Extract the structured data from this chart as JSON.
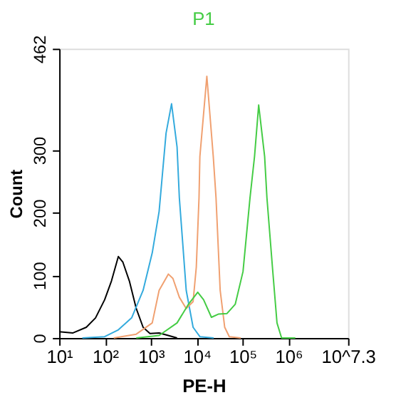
{
  "chart_data": {
    "type": "line",
    "title": "P1",
    "xlabel": "PE-H",
    "ylabel": "Count",
    "log": "x",
    "grid": false,
    "legend": false,
    "marker": "none",
    "line_style": "solid",
    "xlim": [
      10,
      19952623
    ],
    "xticks": [
      {
        "value": 10,
        "label": "10¹"
      },
      {
        "value": 100,
        "label": "10²"
      },
      {
        "value": 1000,
        "label": "10³"
      },
      {
        "value": 10000,
        "label": "10⁴"
      },
      {
        "value": 100000,
        "label": "10⁵"
      },
      {
        "value": 1000000,
        "label": "10⁶"
      },
      {
        "value": 19952623,
        "label": "10^7.3"
      }
    ],
    "ylim": [
      0,
      462
    ],
    "yticks": [
      0,
      100,
      200,
      300,
      462
    ],
    "series": [
      {
        "color": "#000000",
        "x": [
          10,
          20,
          39,
          62,
          98,
          138,
          195,
          245,
          339,
          479,
          676,
          955,
          1510,
          2400,
          3720
        ],
        "values": [
          10,
          8,
          17,
          32,
          61,
          91,
          130,
          121,
          91,
          47,
          17,
          7,
          8,
          4,
          0
        ]
      },
      {
        "color": "#33aadd",
        "x": [
          32,
          98,
          195,
          380,
          676,
          1070,
          1510,
          2140,
          2820,
          3720,
          4170,
          5890,
          8320,
          11700,
          23400
        ],
        "values": [
          0,
          2,
          13,
          32,
          76,
          136,
          202,
          327,
          374,
          305,
          224,
          76,
          17,
          2,
          0
        ]
      },
      {
        "color": "#f0a070",
        "x": [
          155,
          479,
          1070,
          1510,
          2400,
          3020,
          4170,
          5890,
          8320,
          9770,
          11200,
          11700,
          16600,
          22900,
          26300,
          32400,
          40700,
          51300,
          91200
        ],
        "values": [
          0,
          6,
          24,
          76,
          102,
          95,
          65,
          47,
          58,
          113,
          224,
          290,
          418,
          290,
          224,
          76,
          17,
          2,
          0
        ]
      },
      {
        "color": "#44cc44",
        "x": [
          479,
          1510,
          3720,
          6610,
          10500,
          14100,
          20900,
          29500,
          45700,
          69200,
          102000,
          145000,
          182000,
          224000,
          302000,
          339000,
          447000,
          562000,
          708000,
          1410000
        ],
        "values": [
          0,
          4,
          24,
          54,
          73,
          61,
          33,
          38,
          39,
          54,
          106,
          224,
          290,
          372,
          290,
          224,
          113,
          24,
          0,
          0
        ]
      }
    ]
  }
}
